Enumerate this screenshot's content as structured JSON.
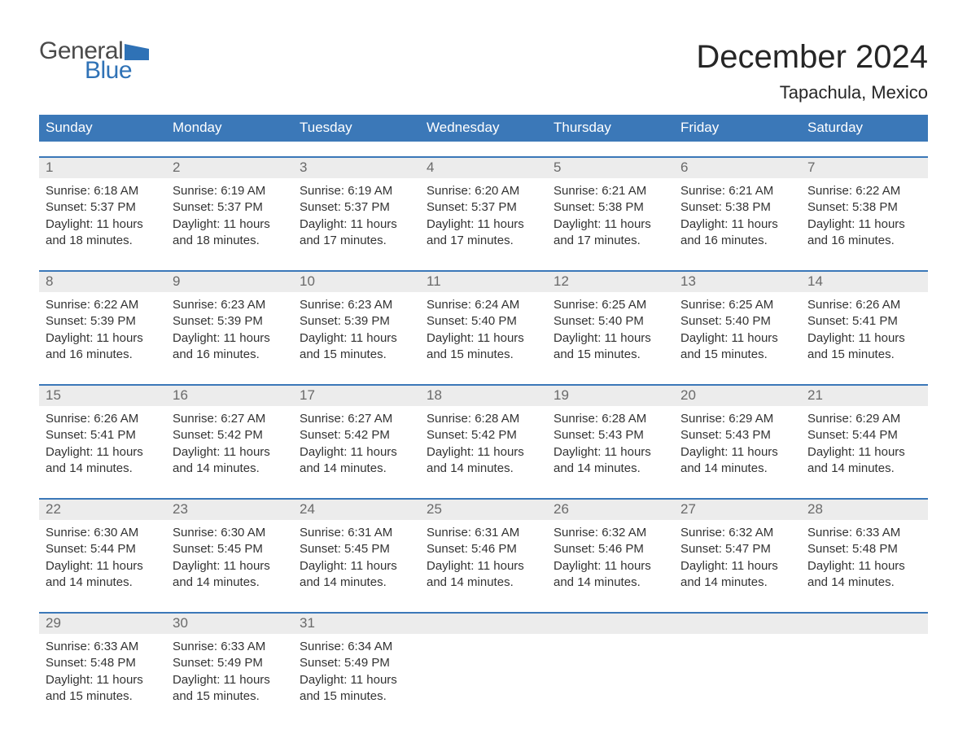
{
  "logo": {
    "textGeneral": "General",
    "textBlue": "Blue"
  },
  "title": "December 2024",
  "location": "Tapachula, Mexico",
  "colors": {
    "headerBg": "#3b78b8",
    "headerText": "#ffffff",
    "dayNumBg": "#ececec",
    "dayNumText": "#6a6a6a",
    "bodyText": "#333333",
    "accent": "#2f72b6",
    "logoGray": "#4a4a4a"
  },
  "weekdays": [
    "Sunday",
    "Monday",
    "Tuesday",
    "Wednesday",
    "Thursday",
    "Friday",
    "Saturday"
  ],
  "weeks": [
    [
      {
        "n": "1",
        "sunrise": "6:18 AM",
        "sunset": "5:37 PM",
        "dayH": "11",
        "dayM": "18"
      },
      {
        "n": "2",
        "sunrise": "6:19 AM",
        "sunset": "5:37 PM",
        "dayH": "11",
        "dayM": "18"
      },
      {
        "n": "3",
        "sunrise": "6:19 AM",
        "sunset": "5:37 PM",
        "dayH": "11",
        "dayM": "17"
      },
      {
        "n": "4",
        "sunrise": "6:20 AM",
        "sunset": "5:37 PM",
        "dayH": "11",
        "dayM": "17"
      },
      {
        "n": "5",
        "sunrise": "6:21 AM",
        "sunset": "5:38 PM",
        "dayH": "11",
        "dayM": "17"
      },
      {
        "n": "6",
        "sunrise": "6:21 AM",
        "sunset": "5:38 PM",
        "dayH": "11",
        "dayM": "16"
      },
      {
        "n": "7",
        "sunrise": "6:22 AM",
        "sunset": "5:38 PM",
        "dayH": "11",
        "dayM": "16"
      }
    ],
    [
      {
        "n": "8",
        "sunrise": "6:22 AM",
        "sunset": "5:39 PM",
        "dayH": "11",
        "dayM": "16"
      },
      {
        "n": "9",
        "sunrise": "6:23 AM",
        "sunset": "5:39 PM",
        "dayH": "11",
        "dayM": "16"
      },
      {
        "n": "10",
        "sunrise": "6:23 AM",
        "sunset": "5:39 PM",
        "dayH": "11",
        "dayM": "15"
      },
      {
        "n": "11",
        "sunrise": "6:24 AM",
        "sunset": "5:40 PM",
        "dayH": "11",
        "dayM": "15"
      },
      {
        "n": "12",
        "sunrise": "6:25 AM",
        "sunset": "5:40 PM",
        "dayH": "11",
        "dayM": "15"
      },
      {
        "n": "13",
        "sunrise": "6:25 AM",
        "sunset": "5:40 PM",
        "dayH": "11",
        "dayM": "15"
      },
      {
        "n": "14",
        "sunrise": "6:26 AM",
        "sunset": "5:41 PM",
        "dayH": "11",
        "dayM": "15"
      }
    ],
    [
      {
        "n": "15",
        "sunrise": "6:26 AM",
        "sunset": "5:41 PM",
        "dayH": "11",
        "dayM": "14"
      },
      {
        "n": "16",
        "sunrise": "6:27 AM",
        "sunset": "5:42 PM",
        "dayH": "11",
        "dayM": "14"
      },
      {
        "n": "17",
        "sunrise": "6:27 AM",
        "sunset": "5:42 PM",
        "dayH": "11",
        "dayM": "14"
      },
      {
        "n": "18",
        "sunrise": "6:28 AM",
        "sunset": "5:42 PM",
        "dayH": "11",
        "dayM": "14"
      },
      {
        "n": "19",
        "sunrise": "6:28 AM",
        "sunset": "5:43 PM",
        "dayH": "11",
        "dayM": "14"
      },
      {
        "n": "20",
        "sunrise": "6:29 AM",
        "sunset": "5:43 PM",
        "dayH": "11",
        "dayM": "14"
      },
      {
        "n": "21",
        "sunrise": "6:29 AM",
        "sunset": "5:44 PM",
        "dayH": "11",
        "dayM": "14"
      }
    ],
    [
      {
        "n": "22",
        "sunrise": "6:30 AM",
        "sunset": "5:44 PM",
        "dayH": "11",
        "dayM": "14"
      },
      {
        "n": "23",
        "sunrise": "6:30 AM",
        "sunset": "5:45 PM",
        "dayH": "11",
        "dayM": "14"
      },
      {
        "n": "24",
        "sunrise": "6:31 AM",
        "sunset": "5:45 PM",
        "dayH": "11",
        "dayM": "14"
      },
      {
        "n": "25",
        "sunrise": "6:31 AM",
        "sunset": "5:46 PM",
        "dayH": "11",
        "dayM": "14"
      },
      {
        "n": "26",
        "sunrise": "6:32 AM",
        "sunset": "5:46 PM",
        "dayH": "11",
        "dayM": "14"
      },
      {
        "n": "27",
        "sunrise": "6:32 AM",
        "sunset": "5:47 PM",
        "dayH": "11",
        "dayM": "14"
      },
      {
        "n": "28",
        "sunrise": "6:33 AM",
        "sunset": "5:48 PM",
        "dayH": "11",
        "dayM": "14"
      }
    ],
    [
      {
        "n": "29",
        "sunrise": "6:33 AM",
        "sunset": "5:48 PM",
        "dayH": "11",
        "dayM": "15"
      },
      {
        "n": "30",
        "sunrise": "6:33 AM",
        "sunset": "5:49 PM",
        "dayH": "11",
        "dayM": "15"
      },
      {
        "n": "31",
        "sunrise": "6:34 AM",
        "sunset": "5:49 PM",
        "dayH": "11",
        "dayM": "15"
      },
      null,
      null,
      null,
      null
    ]
  ],
  "labels": {
    "sunrise": "Sunrise: ",
    "sunset": "Sunset: ",
    "daylightPrefix": "Daylight: ",
    "hoursWord": " hours",
    "andWord": "and ",
    "minutesWord": " minutes."
  }
}
